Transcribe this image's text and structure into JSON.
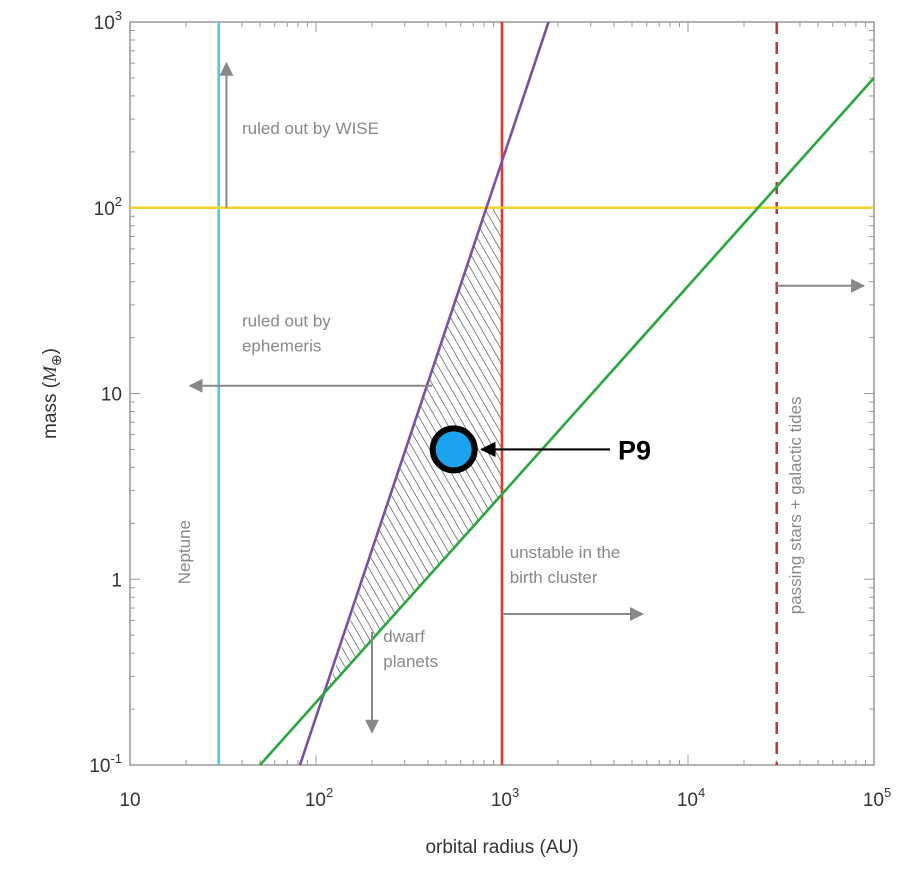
{
  "chart_data": {
    "type": "line",
    "title": "",
    "xlabel": "orbital radius (AU)",
    "ylabel_prefix": "mass (",
    "ylabel_symbol": "M",
    "ylabel_sub": "⊕",
    "ylabel_suffix": ")",
    "xscale": "log",
    "yscale": "log",
    "xlim": [
      10,
      100000
    ],
    "ylim": [
      0.1,
      1000
    ],
    "x_ticks": [
      {
        "value": 10,
        "base": "10",
        "exp": ""
      },
      {
        "value": 100,
        "base": "10",
        "exp": "2"
      },
      {
        "value": 1000,
        "base": "10",
        "exp": "3"
      },
      {
        "value": 10000,
        "base": "10",
        "exp": "4"
      },
      {
        "value": 100000,
        "base": "10",
        "exp": "5"
      }
    ],
    "y_ticks": [
      {
        "value": 0.1,
        "base": "10",
        "exp": "-1"
      },
      {
        "value": 1,
        "base": "1",
        "exp": ""
      },
      {
        "value": 10,
        "base": "10",
        "exp": ""
      },
      {
        "value": 100,
        "base": "10",
        "exp": "2"
      },
      {
        "value": 1000,
        "base": "10",
        "exp": "3"
      }
    ],
    "lines": [
      {
        "name": "Neptune",
        "kind": "vertical",
        "x": 30,
        "color": "#5bc0eb",
        "dashed": false
      },
      {
        "name": "birth cluster limit",
        "kind": "vertical",
        "x": 1000,
        "color": "#e8342c",
        "dashed": false
      },
      {
        "name": "passing stars + galactic tides",
        "kind": "vertical",
        "x": 30000,
        "color": "#a8413a",
        "dashed": true
      },
      {
        "name": "WISE limit",
        "kind": "horizontal",
        "y": 100,
        "color": "#f0d32a",
        "dashed": false
      },
      {
        "name": "ephemeris limit",
        "kind": "segment",
        "points": [
          [
            82,
            0.1
          ],
          [
            1780,
            1000
          ]
        ],
        "color": "#7b4fa8",
        "dashed": false
      },
      {
        "name": "dwarf planet limit",
        "kind": "segment",
        "points": [
          [
            50,
            0.1
          ],
          [
            100000,
            500
          ]
        ],
        "color": "#26a83a",
        "dashed": false
      }
    ],
    "shaded_region": {
      "vertices": [
        [
          115,
          0.25
        ],
        [
          820,
          100
        ],
        [
          1000,
          100
        ],
        [
          1000,
          2.9
        ]
      ],
      "pattern": "diagonal hatch"
    },
    "point": {
      "label": "P9",
      "x": 550,
      "y": 5,
      "color": "#1aa3ef"
    },
    "annotations": [
      {
        "lines": [
          "ruled out by WISE"
        ],
        "x": 40,
        "y": 250,
        "anchor": "start",
        "arrow": {
          "from": [
            33,
            100
          ],
          "to": [
            33,
            600
          ]
        }
      },
      {
        "lines": [
          "ruled out by",
          "ephemeris"
        ],
        "x": 40,
        "y": 23,
        "anchor": "start",
        "arrow": {
          "from": [
            420,
            11
          ],
          "to": [
            21,
            11
          ]
        }
      },
      {
        "lines": [
          "unstable in the",
          "birth cluster"
        ],
        "x": 1100,
        "y": 1.3,
        "anchor": "start",
        "arrow": {
          "from": [
            1000,
            0.65
          ],
          "to": [
            5700,
            0.65
          ]
        }
      },
      {
        "lines": [
          "dwarf",
          "planets"
        ],
        "x": 230,
        "y": 0.46,
        "anchor": "start",
        "arrow": {
          "from": [
            200,
            0.52
          ],
          "to": [
            200,
            0.15
          ]
        }
      },
      {
        "lines": [
          "passing stars + galactic tides"
        ],
        "x": 40500,
        "y": 2.5,
        "anchor": "middle",
        "rotate": -90,
        "arrow": {
          "from": [
            30000,
            38
          ],
          "to": [
            88000,
            38
          ]
        }
      },
      {
        "lines": [
          "Neptune"
        ],
        "x": 21,
        "y": 1.4,
        "anchor": "middle",
        "rotate": -90
      }
    ]
  }
}
